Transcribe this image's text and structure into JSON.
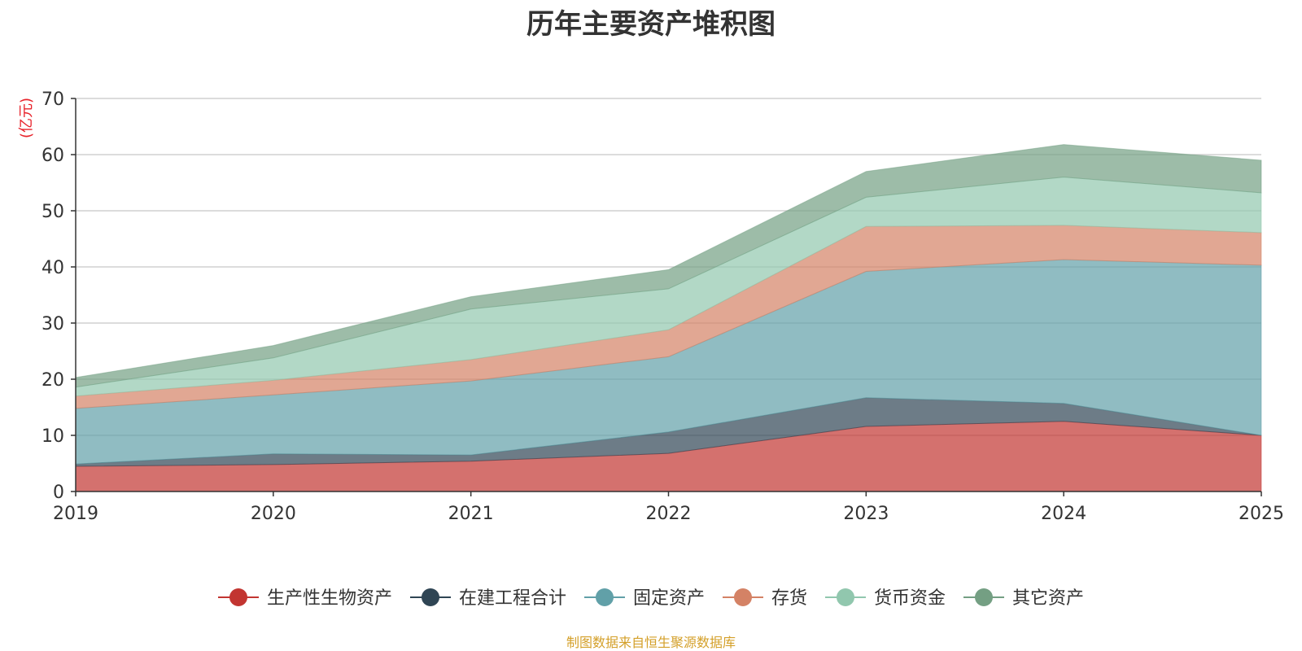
{
  "colors": {
    "title": "#333333",
    "axis": "#333333",
    "grid": "#c8c8c8",
    "unit": "#e8232b",
    "source": "#d4a02a"
  },
  "source_note": "制图数据来自恒生聚源数据库",
  "chart_data": {
    "type": "area",
    "stacked": true,
    "title": "历年主要资产堆积图",
    "ylabel": "(亿元)",
    "xlabel": "",
    "x": [
      "2019",
      "2020",
      "2021",
      "2022",
      "2023",
      "2024",
      "2025"
    ],
    "ylim": [
      0,
      70
    ],
    "yticks": [
      0,
      10,
      20,
      30,
      40,
      50,
      60,
      70
    ],
    "grid": true,
    "legend_position": "bottom",
    "series": [
      {
        "name": "生产性生物资产",
        "color": "#c23531",
        "values": [
          4.5,
          4.8,
          5.4,
          6.8,
          11.6,
          12.5,
          10.0
        ]
      },
      {
        "name": "在建工程合计",
        "color": "#2f4554",
        "values": [
          0.4,
          1.9,
          1.1,
          3.8,
          5.1,
          3.2,
          0.0
        ]
      },
      {
        "name": "固定资产",
        "color": "#61a0a8",
        "values": [
          9.9,
          10.5,
          13.2,
          13.4,
          22.5,
          25.6,
          30.3
        ]
      },
      {
        "name": "存货",
        "color": "#d48265",
        "values": [
          2.2,
          2.6,
          3.8,
          4.8,
          8.0,
          6.1,
          5.8
        ]
      },
      {
        "name": "货币资金",
        "color": "#91c7ae",
        "values": [
          1.6,
          4.0,
          9.0,
          7.3,
          5.2,
          8.6,
          7.1
        ]
      },
      {
        "name": "其它资产",
        "color": "#749f83",
        "values": [
          1.7,
          2.2,
          2.2,
          3.4,
          4.6,
          5.8,
          5.8
        ]
      }
    ]
  }
}
